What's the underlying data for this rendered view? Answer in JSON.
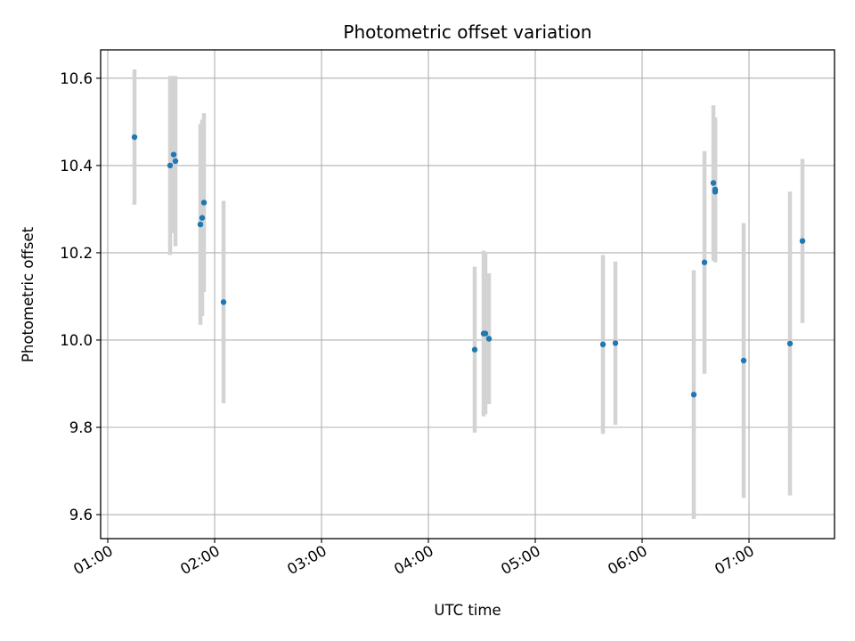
{
  "chart_data": {
    "type": "scatter",
    "title": "Photometric offset variation",
    "xlabel": "UTC time",
    "ylabel": "Photometric offset",
    "x_axis_type": "time",
    "xlim": [
      "00:56",
      "07:48"
    ],
    "ylim": [
      9.545,
      10.665
    ],
    "grid": true,
    "x_ticks": [
      "01:00",
      "02:00",
      "03:00",
      "04:00",
      "05:00",
      "06:00",
      "07:00"
    ],
    "y_ticks": [
      "9.6",
      "9.8",
      "10.0",
      "10.2",
      "10.4",
      "10.6"
    ],
    "marker_color": "#1f77b4",
    "errorbar_color": "#d3d3d3",
    "points": [
      {
        "x": "01:15",
        "y": 10.465,
        "yerr": 0.155
      },
      {
        "x": "01:35",
        "y": 10.4,
        "yerr": 0.205
      },
      {
        "x": "01:37",
        "y": 10.425,
        "yerr": 0.18
      },
      {
        "x": "01:38",
        "y": 10.41,
        "yerr": 0.195
      },
      {
        "x": "01:52",
        "y": 10.265,
        "yerr": 0.23
      },
      {
        "x": "01:53",
        "y": 10.28,
        "yerr": 0.225
      },
      {
        "x": "01:54",
        "y": 10.315,
        "yerr": 0.205
      },
      {
        "x": "02:05",
        "y": 10.087,
        "yerr": 0.232
      },
      {
        "x": "04:26",
        "y": 9.978,
        "yerr": 0.19
      },
      {
        "x": "04:31",
        "y": 10.015,
        "yerr": 0.19
      },
      {
        "x": "04:32",
        "y": 10.015,
        "yerr": 0.185
      },
      {
        "x": "04:34",
        "y": 10.003,
        "yerr": 0.15
      },
      {
        "x": "05:38",
        "y": 9.99,
        "yerr": 0.205
      },
      {
        "x": "05:45",
        "y": 9.993,
        "yerr": 0.187
      },
      {
        "x": "06:29",
        "y": 9.875,
        "yerr": 0.285
      },
      {
        "x": "06:35",
        "y": 10.178,
        "yerr": 0.255
      },
      {
        "x": "06:40",
        "y": 10.36,
        "yerr": 0.178
      },
      {
        "x": "06:41",
        "y": 10.345,
        "yerr": 0.165
      },
      {
        "x": "06:41",
        "y": 10.34,
        "yerr": 0.162
      },
      {
        "x": "06:57",
        "y": 9.953,
        "yerr": 0.315
      },
      {
        "x": "07:23",
        "y": 9.992,
        "yerr": 0.348
      },
      {
        "x": "07:30",
        "y": 10.227,
        "yerr": 0.188
      }
    ]
  }
}
